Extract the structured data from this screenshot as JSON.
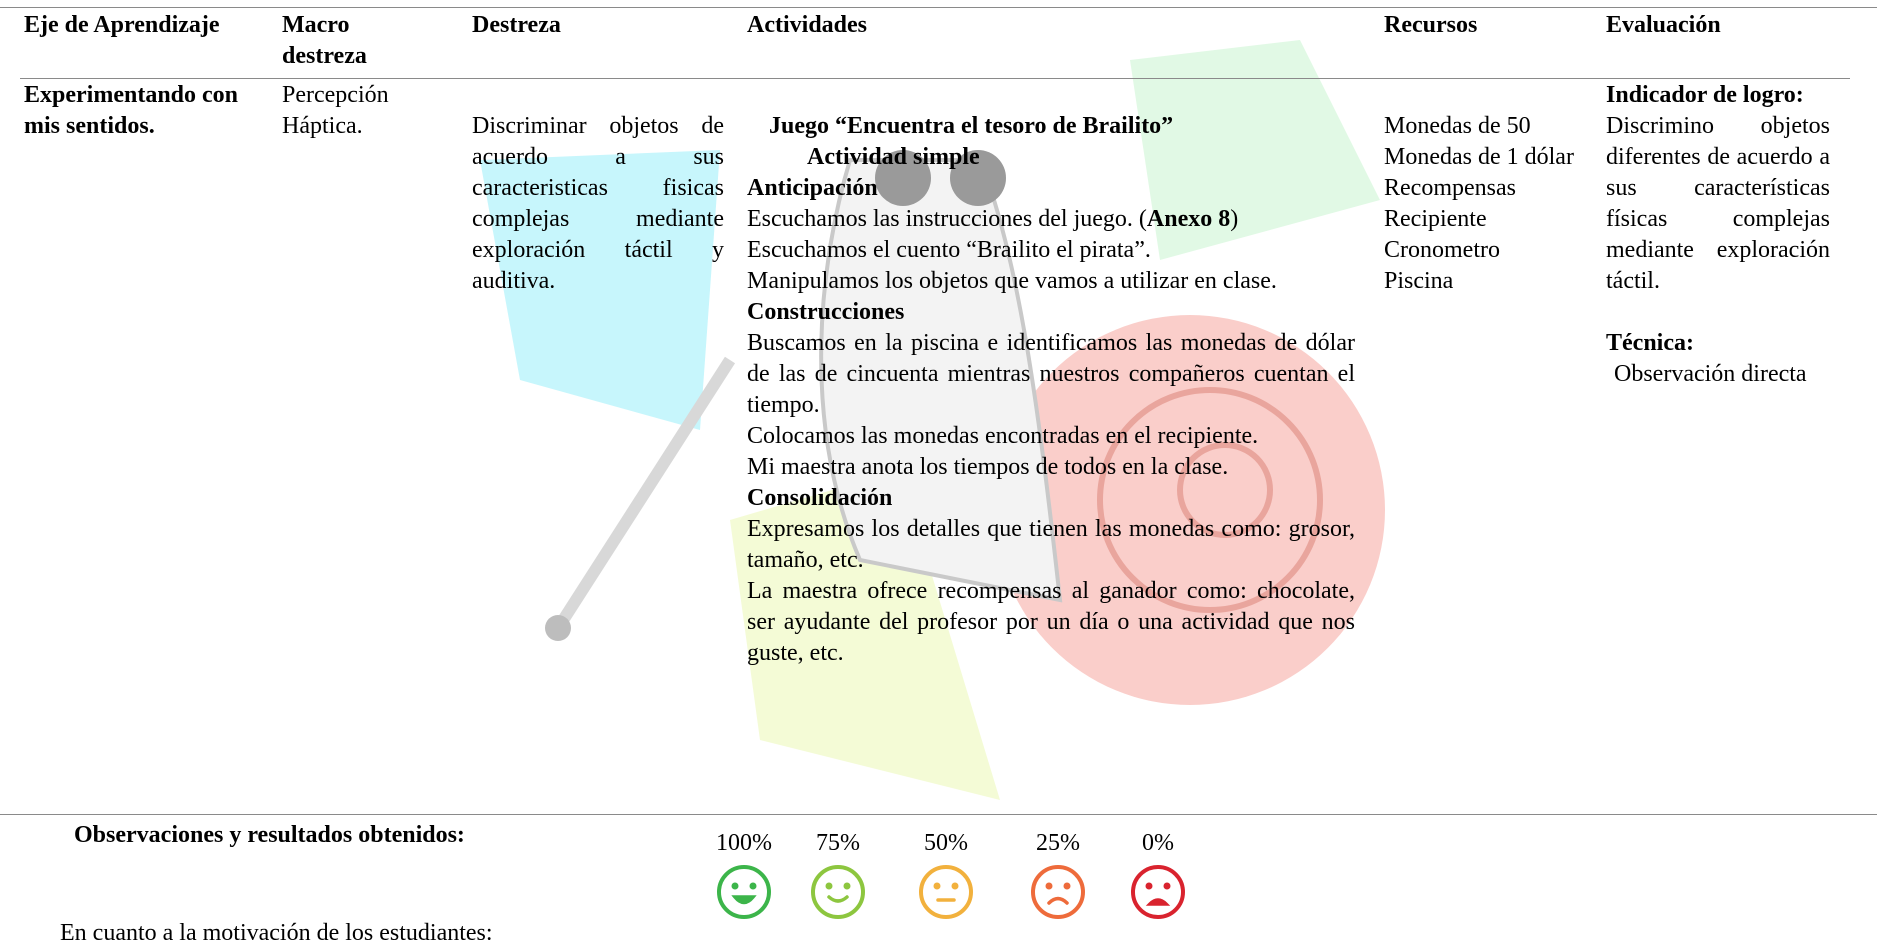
{
  "table": {
    "headers": [
      "Eje de Aprendizaje",
      "Macro destreza",
      "Destreza",
      "Actividades",
      "Recursos",
      "Evaluación"
    ],
    "row": {
      "eje": "Experimentando con mis sentidos.",
      "macro": "Percepción Háptica.",
      "destreza": "Discriminar objetos de acuerdo a sus caracteristicas fisicas complejas mediante exploración táctil y auditiva.",
      "actividades": {
        "title": "Juego “Encuentra el tesoro de Brailito”",
        "subtitle": "Actividad simple",
        "sections": [
          {
            "heading": "Anticipación",
            "items": [
              [
                "Escuchamos las instrucciones del juego. (",
                "Anexo 8",
                ")"
              ],
              [
                "Escuchamos el cuento “Brailito el pirata”."
              ],
              [
                "Manipulamos los objetos que vamos a utilizar en clase."
              ]
            ]
          },
          {
            "heading": "Construcciones",
            "items": [
              [
                "Buscamos en la piscina e identificamos las monedas de dólar de las de cincuenta mientras nuestros compañeros cuentan el tiempo."
              ],
              [
                "Colocamos las monedas encontradas en el recipiente."
              ],
              [
                "Mi maestra anota los tiempos de todos en la clase."
              ]
            ]
          },
          {
            "heading": "Consolidación",
            "items": [
              [
                "Expresamos los detalles que tienen las monedas como: grosor, tamaño, etc."
              ],
              [
                "La maestra ofrece recompensas al ganador como: chocolate, ser ayudante del profesor por un día o una actividad que nos guste, etc."
              ]
            ]
          }
        ]
      },
      "recursos": [
        "Monedas de 50",
        "Monedas de 1 dólar",
        "Recompensas",
        "Recipiente",
        "Cronometro",
        "Piscina"
      ],
      "evaluacion": {
        "indicador_title": "Indicador de logro:",
        "indicador": "Discrimino objetos diferentes de acuerdo a sus características físicas complejas mediante exploración táctil.",
        "tecnica_title": "Técnica:",
        "tecnica": "Observación directa"
      }
    }
  },
  "observations": {
    "title": "Observaciones y resultados obtenidos:",
    "scale": [
      "100%",
      "75%",
      "50%",
      "25%",
      "0%"
    ],
    "question": "En cuanto a la motivación de los estudiantes:"
  }
}
